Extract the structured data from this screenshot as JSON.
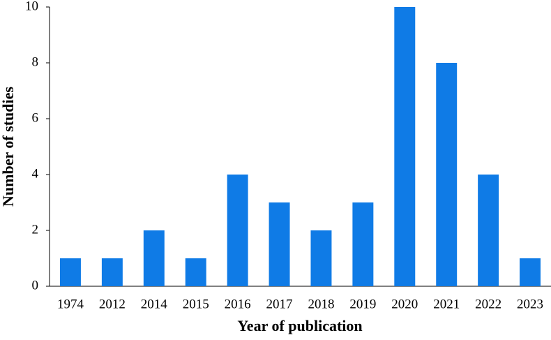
{
  "chart_data": {
    "type": "bar",
    "categories": [
      "1974",
      "2012",
      "2014",
      "2015",
      "2016",
      "2017",
      "2018",
      "2019",
      "2020",
      "2021",
      "2022",
      "2023"
    ],
    "values": [
      1,
      1,
      2,
      1,
      4,
      3,
      2,
      3,
      10,
      8,
      4,
      1
    ],
    "color": "#0f7be6",
    "x_label": "Year of publication",
    "y_label": "Number of studies",
    "ylim": [
      0,
      10
    ],
    "yticks": [
      0,
      2,
      4,
      6,
      8,
      10
    ],
    "grid": false
  }
}
